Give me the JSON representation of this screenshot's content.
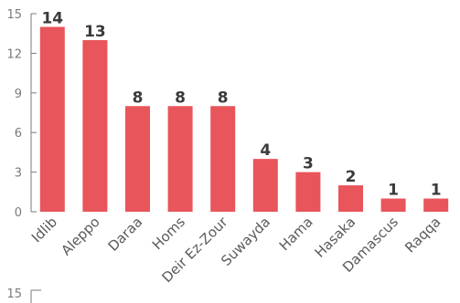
{
  "chart_data": {
    "type": "bar",
    "categories": [
      "Idlib",
      "Aleppo",
      "Daraa",
      "Homs",
      "Deir Ez-Zour",
      "Suwayda",
      "Hama",
      "Hasaka",
      "Damascus",
      "Raqqa"
    ],
    "values": [
      14,
      13,
      8,
      8,
      8,
      4,
      3,
      2,
      1,
      1
    ],
    "title": "",
    "xlabel": "",
    "ylabel": "",
    "ylim": [
      0,
      15
    ],
    "yticks": [
      0,
      3,
      6,
      9,
      12,
      15
    ],
    "grid": false,
    "data_labels": true,
    "bar_color": "#e8555a"
  },
  "second_chart_axis": {
    "visible_tick": "15"
  }
}
